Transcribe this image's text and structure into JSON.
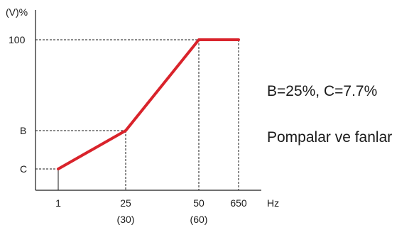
{
  "chart_data": {
    "type": "line",
    "ylabel": "(V)%",
    "xlabel": "Hz",
    "series": [
      {
        "points": [
          {
            "x": "1",
            "y": "C"
          },
          {
            "x": "25",
            "y": "B"
          },
          {
            "x": "50",
            "y": "100"
          },
          {
            "x": "650",
            "y": "100"
          }
        ]
      }
    ],
    "y_ticks": [
      "C",
      "B",
      "100"
    ],
    "x_ticks": [
      {
        "label": "1",
        "sub": ""
      },
      {
        "label": "25",
        "sub": "(30)"
      },
      {
        "label": "50",
        "sub": "(60)"
      },
      {
        "label": "650",
        "sub": ""
      }
    ],
    "guides": "dashed",
    "line_color": "#d9232b",
    "annotations": [
      "B=25%, C=7.7%",
      "Pompalar ve fanlar"
    ]
  }
}
